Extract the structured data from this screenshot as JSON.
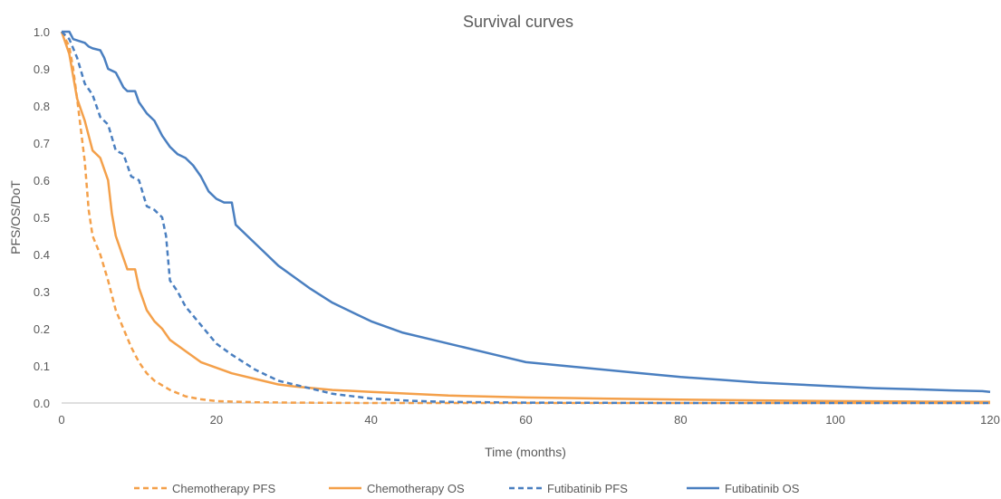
{
  "chart_data": {
    "type": "line",
    "title": "Survival curves",
    "xlabel": "Time (months)",
    "ylabel": "PFS/OS/DoT",
    "xlim": [
      0,
      120
    ],
    "ylim": [
      0,
      1.0
    ],
    "x_ticks": [
      "0",
      "20",
      "40",
      "60",
      "80",
      "100",
      "120"
    ],
    "y_ticks": [
      "0.0",
      "0.1",
      "0.2",
      "0.3",
      "0.4",
      "0.5",
      "0.6",
      "0.7",
      "0.8",
      "0.9",
      "1.0"
    ],
    "grid": false,
    "legend_position": "bottom",
    "series": [
      {
        "name": "Chemotherapy PFS",
        "color": "#f4a04a",
        "style": "dashed",
        "points": [
          [
            0,
            1.0
          ],
          [
            1,
            0.96
          ],
          [
            1.5,
            0.9
          ],
          [
            2,
            0.82
          ],
          [
            3,
            0.65
          ],
          [
            3.5,
            0.52
          ],
          [
            4,
            0.45
          ],
          [
            5,
            0.4
          ],
          [
            6,
            0.33
          ],
          [
            7,
            0.25
          ],
          [
            8,
            0.2
          ],
          [
            9,
            0.15
          ],
          [
            10,
            0.11
          ],
          [
            11,
            0.08
          ],
          [
            12,
            0.06
          ],
          [
            14,
            0.035
          ],
          [
            16,
            0.018
          ],
          [
            18,
            0.01
          ],
          [
            20,
            0.005
          ],
          [
            25,
            0.002
          ],
          [
            30,
            0.001
          ],
          [
            40,
            0.0
          ],
          [
            60,
            0.0
          ],
          [
            80,
            0.0
          ],
          [
            100,
            0.0
          ],
          [
            120,
            0.0
          ]
        ]
      },
      {
        "name": "Chemotherapy OS",
        "color": "#f4a04a",
        "style": "solid",
        "points": [
          [
            0,
            1.0
          ],
          [
            1,
            0.94
          ],
          [
            2,
            0.82
          ],
          [
            3,
            0.76
          ],
          [
            4,
            0.68
          ],
          [
            5,
            0.66
          ],
          [
            6,
            0.6
          ],
          [
            6.5,
            0.51
          ],
          [
            7,
            0.45
          ],
          [
            8,
            0.39
          ],
          [
            8.5,
            0.36
          ],
          [
            9.5,
            0.36
          ],
          [
            10,
            0.31
          ],
          [
            11,
            0.25
          ],
          [
            12,
            0.22
          ],
          [
            13,
            0.2
          ],
          [
            14,
            0.17
          ],
          [
            16,
            0.14
          ],
          [
            18,
            0.11
          ],
          [
            20,
            0.095
          ],
          [
            22,
            0.08
          ],
          [
            25,
            0.065
          ],
          [
            28,
            0.05
          ],
          [
            30,
            0.045
          ],
          [
            35,
            0.035
          ],
          [
            40,
            0.03
          ],
          [
            50,
            0.02
          ],
          [
            60,
            0.015
          ],
          [
            70,
            0.012
          ],
          [
            80,
            0.009
          ],
          [
            90,
            0.007
          ],
          [
            100,
            0.005
          ],
          [
            110,
            0.004
          ],
          [
            120,
            0.003
          ]
        ]
      },
      {
        "name": "Futibatinib PFS",
        "color": "#4a7fc0",
        "style": "dashed",
        "points": [
          [
            0,
            1.0
          ],
          [
            1,
            0.98
          ],
          [
            2,
            0.93
          ],
          [
            3,
            0.86
          ],
          [
            4,
            0.83
          ],
          [
            5,
            0.77
          ],
          [
            6,
            0.75
          ],
          [
            7,
            0.68
          ],
          [
            8,
            0.67
          ],
          [
            9,
            0.61
          ],
          [
            10,
            0.6
          ],
          [
            11,
            0.53
          ],
          [
            12,
            0.52
          ],
          [
            13,
            0.5
          ],
          [
            13.5,
            0.45
          ],
          [
            14,
            0.33
          ],
          [
            15,
            0.3
          ],
          [
            16,
            0.26
          ],
          [
            18,
            0.21
          ],
          [
            20,
            0.16
          ],
          [
            22,
            0.13
          ],
          [
            25,
            0.09
          ],
          [
            28,
            0.06
          ],
          [
            30,
            0.05
          ],
          [
            35,
            0.025
          ],
          [
            40,
            0.012
          ],
          [
            45,
            0.006
          ],
          [
            50,
            0.003
          ],
          [
            60,
            0.001
          ],
          [
            80,
            0.0
          ],
          [
            100,
            0.0
          ],
          [
            120,
            0.0
          ]
        ]
      },
      {
        "name": "Futibatinib OS",
        "color": "#4a7fc0",
        "style": "solid",
        "points": [
          [
            0,
            1.0
          ],
          [
            1,
            1.0
          ],
          [
            1.5,
            0.98
          ],
          [
            3,
            0.97
          ],
          [
            3.5,
            0.96
          ],
          [
            4,
            0.955
          ],
          [
            5,
            0.95
          ],
          [
            5.5,
            0.93
          ],
          [
            6,
            0.9
          ],
          [
            7,
            0.89
          ],
          [
            7.5,
            0.87
          ],
          [
            8,
            0.85
          ],
          [
            8.5,
            0.84
          ],
          [
            9.5,
            0.84
          ],
          [
            10,
            0.81
          ],
          [
            11,
            0.78
          ],
          [
            12,
            0.76
          ],
          [
            13,
            0.72
          ],
          [
            14,
            0.69
          ],
          [
            15,
            0.67
          ],
          [
            16,
            0.66
          ],
          [
            17,
            0.64
          ],
          [
            18,
            0.61
          ],
          [
            19,
            0.57
          ],
          [
            20,
            0.55
          ],
          [
            21,
            0.54
          ],
          [
            22,
            0.54
          ],
          [
            22.5,
            0.48
          ],
          [
            24,
            0.45
          ],
          [
            26,
            0.41
          ],
          [
            28,
            0.37
          ],
          [
            30,
            0.34
          ],
          [
            32,
            0.31
          ],
          [
            35,
            0.27
          ],
          [
            38,
            0.24
          ],
          [
            40,
            0.22
          ],
          [
            44,
            0.19
          ],
          [
            48,
            0.17
          ],
          [
            52,
            0.15
          ],
          [
            56,
            0.13
          ],
          [
            60,
            0.11
          ],
          [
            65,
            0.1
          ],
          [
            70,
            0.09
          ],
          [
            75,
            0.08
          ],
          [
            80,
            0.07
          ],
          [
            85,
            0.063
          ],
          [
            90,
            0.055
          ],
          [
            95,
            0.05
          ],
          [
            100,
            0.045
          ],
          [
            105,
            0.04
          ],
          [
            110,
            0.037
          ],
          [
            115,
            0.034
          ],
          [
            119,
            0.032
          ],
          [
            120,
            0.03
          ]
        ]
      }
    ]
  }
}
